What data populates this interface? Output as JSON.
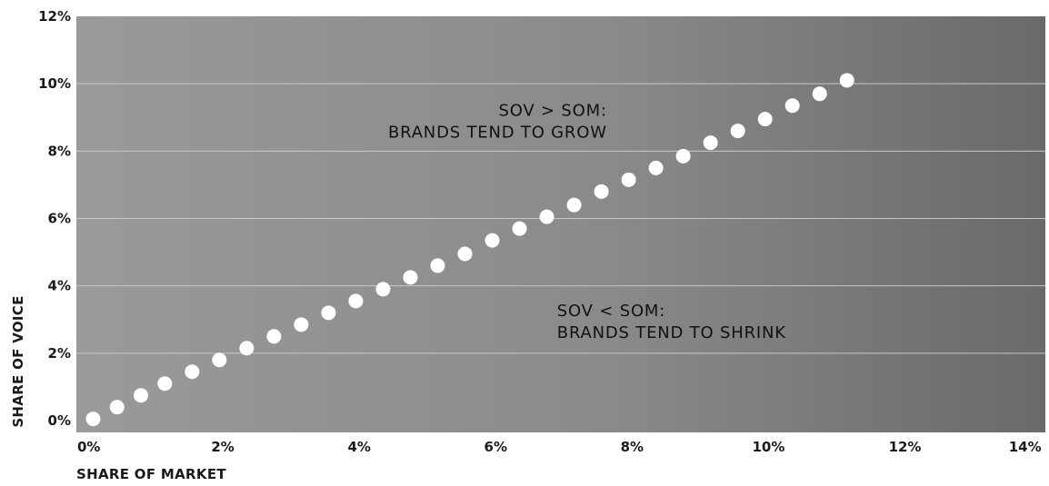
{
  "chart_data": {
    "type": "scatter",
    "title": "",
    "xlabel": "SHARE OF MARKET",
    "ylabel": "SHARE OF VOICE",
    "xlim": [
      0,
      14
    ],
    "ylim": [
      0,
      12
    ],
    "x_tick_values": [
      0,
      2,
      4,
      6,
      8,
      10,
      12,
      14
    ],
    "y_tick_values": [
      0,
      2,
      4,
      6,
      8,
      10,
      12
    ],
    "x_tick_labels": [
      "0%",
      "2%",
      "4%",
      "6%",
      "8%",
      "10%",
      "12%",
      "14%"
    ],
    "y_tick_labels": [
      "0%",
      "2%",
      "4%",
      "6%",
      "8%",
      "10%",
      "12%"
    ],
    "grid": "horizontal",
    "series": [
      {
        "x": [
          0.1,
          0.45,
          0.8,
          1.15,
          1.55,
          1.95,
          2.35,
          2.75,
          3.15,
          3.55,
          3.95,
          4.35,
          4.75,
          5.15,
          5.55,
          5.95,
          6.35,
          6.75,
          7.15,
          7.55,
          7.95,
          8.35,
          8.75,
          9.15,
          9.55,
          9.95,
          10.35,
          10.75,
          11.15
        ],
        "y": [
          0.05,
          0.4,
          0.75,
          1.1,
          1.45,
          1.8,
          2.15,
          2.5,
          2.85,
          3.2,
          3.55,
          3.9,
          4.25,
          4.6,
          4.95,
          5.35,
          5.7,
          6.05,
          6.4,
          6.8,
          7.15,
          7.5,
          7.85,
          8.25,
          8.6,
          8.95,
          9.35,
          9.7,
          10.1
        ]
      }
    ],
    "annotations": [
      {
        "lines": [
          "SOV > SOM:",
          "BRANDS TEND TO GROW"
        ],
        "align": "end",
        "x": 7.3,
        "y": 9.05
      },
      {
        "lines": [
          "SOV < SOM:",
          "BRANDS TEND TO SHRINK"
        ],
        "align": "start",
        "x": 6.9,
        "y": 3.1
      }
    ],
    "colors": {
      "plot_bg_light": "#9a9a9a",
      "plot_bg_mid": "#8a8a8a",
      "plot_bg_dark": "#6a6a6a",
      "gridline": "#c8c8c8",
      "point": "#ffffff",
      "text": "#1a1a1a"
    }
  }
}
